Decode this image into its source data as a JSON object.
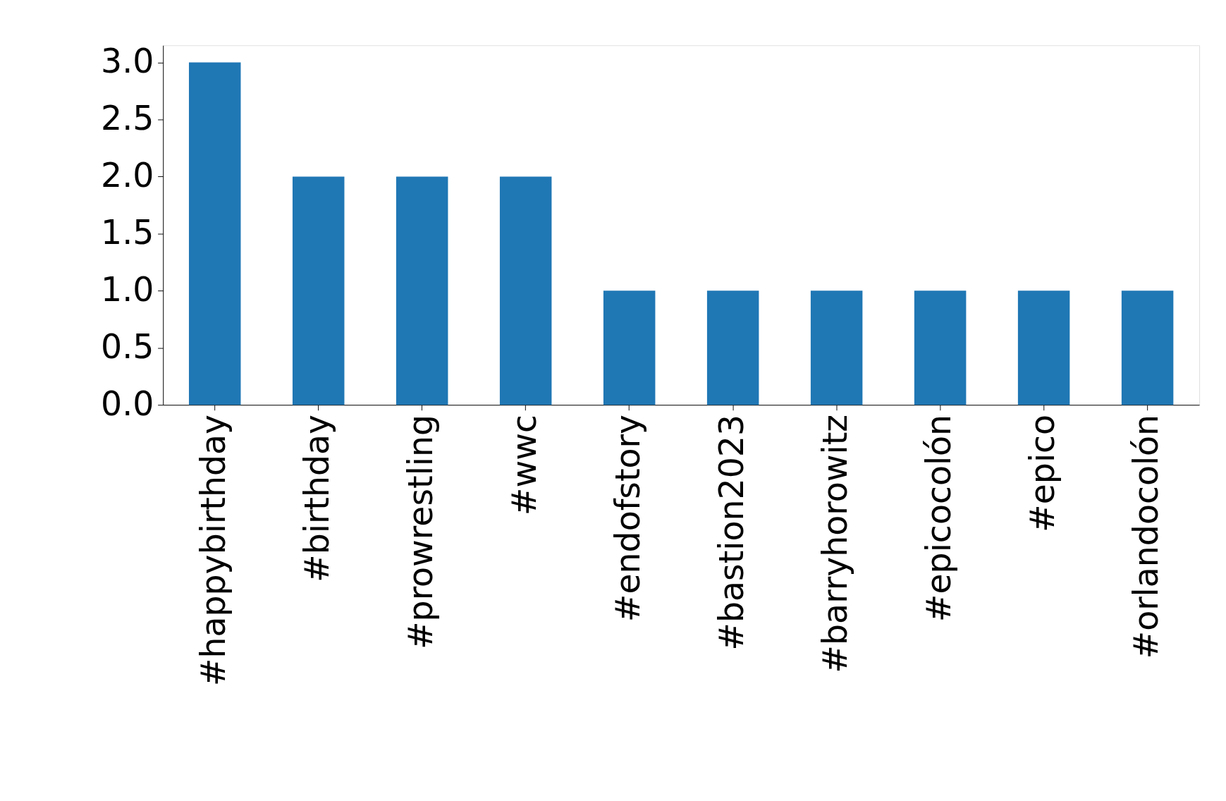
{
  "chart_data": {
    "type": "bar",
    "categories": [
      "#happybirthday",
      "#birthday",
      "#prowrestling",
      "#wwc",
      "#endofstory",
      "#bastion2023",
      "#barryhorowitz",
      "#epicocolón",
      "#epico",
      "#orlandocolón"
    ],
    "values": [
      3,
      2,
      2,
      2,
      1,
      1,
      1,
      1,
      1,
      1
    ],
    "color": "#1f77b4",
    "ylim": [
      0,
      3.15
    ],
    "yticks": [
      {
        "value": 0,
        "label": "0.0"
      },
      {
        "value": 0.5,
        "label": "0.5"
      },
      {
        "value": 1,
        "label": "1.0"
      },
      {
        "value": 1.5,
        "label": "1.5"
      },
      {
        "value": 2,
        "label": "2.0"
      },
      {
        "value": 2.5,
        "label": "2.5"
      },
      {
        "value": 3,
        "label": "3.0"
      }
    ],
    "grid": false
  }
}
